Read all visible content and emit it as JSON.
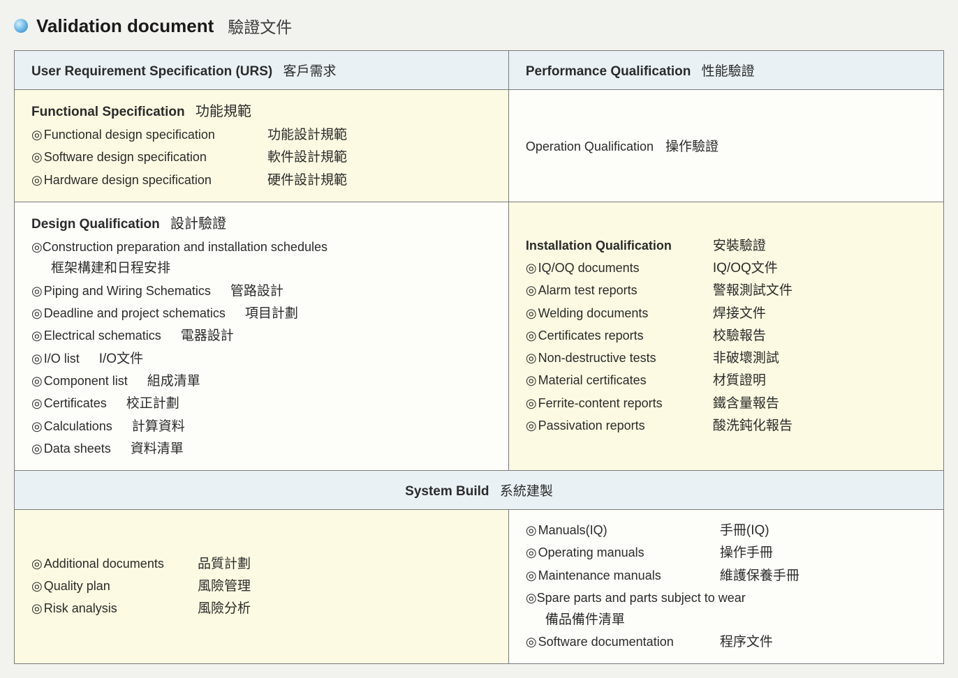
{
  "colors": {
    "page_bg": "#f2f3ee",
    "cell_bg_default": "#fdfdf9",
    "cell_bg_yellow": "#fcfae2",
    "header_bg": "#e9f1f4",
    "border": "#7a7a7a",
    "text": "#2b2b2b",
    "bullet_gradient": [
      "#cfefff",
      "#6db8e8",
      "#2a7fb8"
    ]
  },
  "title": {
    "en": "Validation document",
    "zh": "驗證文件"
  },
  "urs": {
    "en": "User Requirement Specification (URS)",
    "zh": "客戶需求"
  },
  "pq": {
    "en": "Performance Qualification",
    "zh": "性能驗證"
  },
  "fs": {
    "title_en": "Functional Specification",
    "title_zh": "功能規範",
    "items": [
      {
        "en": "Functional design specification",
        "zh": "功能設計規範"
      },
      {
        "en": "Software design specification",
        "zh": "軟件設計規範"
      },
      {
        "en": "Hardware design specification",
        "zh": "硬件設計規範"
      }
    ]
  },
  "oq": {
    "en": "Operation Qualification",
    "zh": "操作驗證"
  },
  "dq": {
    "title_en": "Design Qualification",
    "title_zh": "設計驗證",
    "items": [
      {
        "multi": true,
        "en": "Construction preparation and installation schedules",
        "zh": "框架構建和日程安排"
      },
      {
        "en": "Piping and Wiring Schematics",
        "zh": "管路設計"
      },
      {
        "en": "Deadline and project schematics",
        "zh": "項目計劃"
      },
      {
        "en": "Electrical schematics",
        "zh": "電器設計"
      },
      {
        "en": "I/O list",
        "zh": "I/O文件"
      },
      {
        "en": "Component list",
        "zh": "組成清單"
      },
      {
        "en": "Certificates",
        "zh": "校正計劃"
      },
      {
        "en": "Calculations",
        "zh": "計算資料"
      },
      {
        "en": "Data sheets",
        "zh": "資料清單"
      }
    ]
  },
  "iq": {
    "title_en": "Installation Qualification",
    "title_zh": "安裝驗證",
    "items": [
      {
        "en": "IQ/OQ documents",
        "zh": "IQ/OQ文件"
      },
      {
        "en": "Alarm test reports",
        "zh": "警報測試文件"
      },
      {
        "en": "Welding documents",
        "zh": "焊接文件"
      },
      {
        "en": "Certificates reports",
        "zh": "校驗報告"
      },
      {
        "en": "Non-destructive tests",
        "zh": "非破壞測試"
      },
      {
        "en": "Material certificates",
        "zh": "材質證明"
      },
      {
        "en": "Ferrite-content reports",
        "zh": "鐵含量報告"
      },
      {
        "en": "Passivation reports",
        "zh": "酸洗鈍化報告"
      }
    ]
  },
  "sysbuild": {
    "en": "System Build",
    "zh": "系統建製"
  },
  "sb_left": {
    "items": [
      {
        "en": "Additional documents",
        "zh": "品質計劃"
      },
      {
        "en": "Quality plan",
        "zh": "風險管理"
      },
      {
        "en": "Risk analysis",
        "zh": "風險分析"
      }
    ]
  },
  "sb_right": {
    "items": [
      {
        "en": "Manuals(IQ)",
        "zh": "手冊(IQ)"
      },
      {
        "en": "Operating manuals",
        "zh": "操作手冊"
      },
      {
        "en": "Maintenance manuals",
        "zh": "維護保養手冊"
      },
      {
        "multi": true,
        "en": "Spare parts and parts subject to wear",
        "zh": "備品備件清單"
      },
      {
        "en": "Software documentation",
        "zh": "程序文件"
      }
    ]
  },
  "bullet_char": "◎",
  "fonts": {
    "title_en": 26,
    "title_zh": 23,
    "header": 19,
    "body": 18,
    "body_zh": 19
  }
}
